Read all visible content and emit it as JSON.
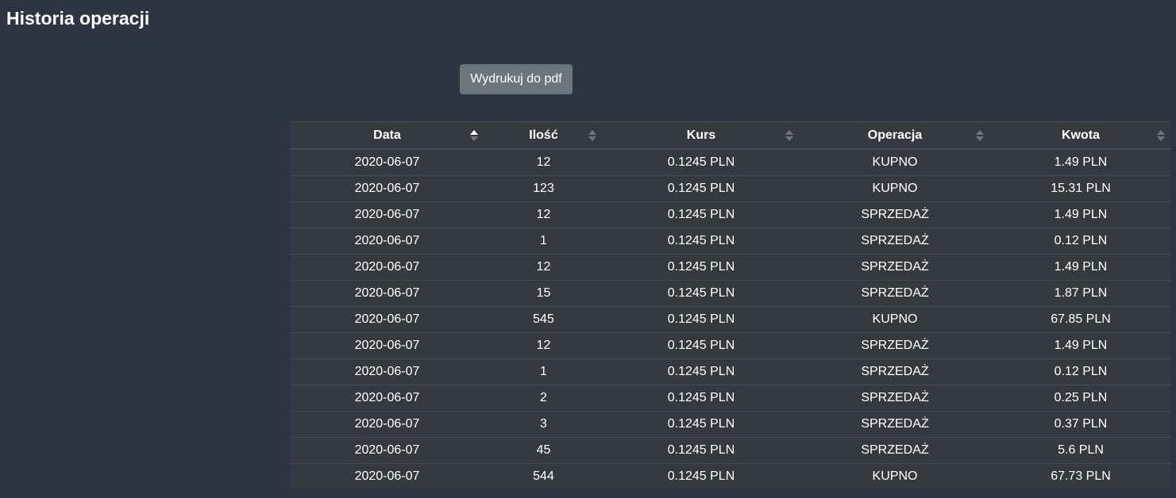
{
  "page": {
    "title": "Historia operacji"
  },
  "toolbar": {
    "print_label": "Wydrukuj do pdf"
  },
  "table": {
    "columns": [
      {
        "label": "Data",
        "sort": "asc"
      },
      {
        "label": "Ilość",
        "sort": "none"
      },
      {
        "label": "Kurs",
        "sort": "none"
      },
      {
        "label": "Operacja",
        "sort": "none"
      },
      {
        "label": "Kwota",
        "sort": "none"
      }
    ],
    "rows": [
      [
        "2020-06-07",
        "12",
        "0.1245 PLN",
        "KUPNO",
        "1.49 PLN"
      ],
      [
        "2020-06-07",
        "123",
        "0.1245 PLN",
        "KUPNO",
        "15.31 PLN"
      ],
      [
        "2020-06-07",
        "12",
        "0.1245 PLN",
        "SPRZEDAŻ",
        "1.49 PLN"
      ],
      [
        "2020-06-07",
        "1",
        "0.1245 PLN",
        "SPRZEDAŻ",
        "0.12 PLN"
      ],
      [
        "2020-06-07",
        "12",
        "0.1245 PLN",
        "SPRZEDAŻ",
        "1.49 PLN"
      ],
      [
        "2020-06-07",
        "15",
        "0.1245 PLN",
        "SPRZEDAŻ",
        "1.87 PLN"
      ],
      [
        "2020-06-07",
        "545",
        "0.1245 PLN",
        "KUPNO",
        "67.85 PLN"
      ],
      [
        "2020-06-07",
        "12",
        "0.1245 PLN",
        "SPRZEDAŻ",
        "1.49 PLN"
      ],
      [
        "2020-06-07",
        "1",
        "0.1245 PLN",
        "SPRZEDAŻ",
        "0.12 PLN"
      ],
      [
        "2020-06-07",
        "2",
        "0.1245 PLN",
        "SPRZEDAŻ",
        "0.25 PLN"
      ],
      [
        "2020-06-07",
        "3",
        "0.1245 PLN",
        "SPRZEDAŻ",
        "0.37 PLN"
      ],
      [
        "2020-06-07",
        "45",
        "0.1245 PLN",
        "SPRZEDAŻ",
        "5.6 PLN"
      ],
      [
        "2020-06-07",
        "544",
        "0.1245 PLN",
        "KUPNO",
        "67.73 PLN"
      ]
    ]
  },
  "colors": {
    "background": "#2e3442",
    "table_background": "#343a40",
    "border": "#454d55",
    "button": "#6c757d",
    "sort_active": "#ffffff",
    "sort_inactive": "#6f7680"
  }
}
